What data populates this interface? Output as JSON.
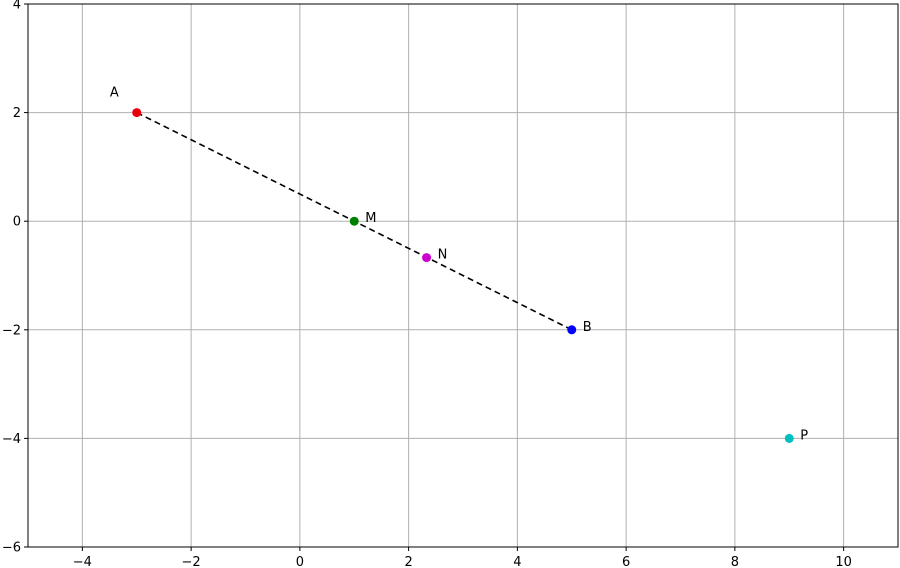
{
  "chart_data": {
    "type": "scatter",
    "title": "",
    "xlabel": "",
    "ylabel": "",
    "xlim": [
      -5,
      11
    ],
    "ylim": [
      -6,
      4
    ],
    "grid": true,
    "x_ticks": [
      -4,
      -2,
      0,
      2,
      4,
      6,
      8,
      10
    ],
    "y_ticks": [
      -6,
      -4,
      -2,
      0,
      2,
      4
    ],
    "x_tick_labels": [
      "−4",
      "−2",
      "0",
      "2",
      "4",
      "6",
      "8",
      "10"
    ],
    "y_tick_labels": [
      "−6",
      "−4",
      "−2",
      "0",
      "2",
      "4"
    ],
    "points": [
      {
        "label": "A",
        "x": -3,
        "y": 2,
        "color": "#e8000b",
        "label_pos": "upper-left"
      },
      {
        "label": "M",
        "x": 1,
        "y": 0,
        "color": "#008000",
        "label_pos": "right"
      },
      {
        "label": "N",
        "x": 2.33,
        "y": -0.67,
        "color": "#cc00cc",
        "label_pos": "right"
      },
      {
        "label": "B",
        "x": 5,
        "y": -2,
        "color": "#0000ff",
        "label_pos": "right"
      },
      {
        "label": "P",
        "x": 9,
        "y": -4,
        "color": "#00bfbf",
        "label_pos": "right"
      }
    ],
    "segments": [
      {
        "from": "A",
        "to": "B",
        "style": "dashed",
        "color": "#000000"
      }
    ]
  }
}
